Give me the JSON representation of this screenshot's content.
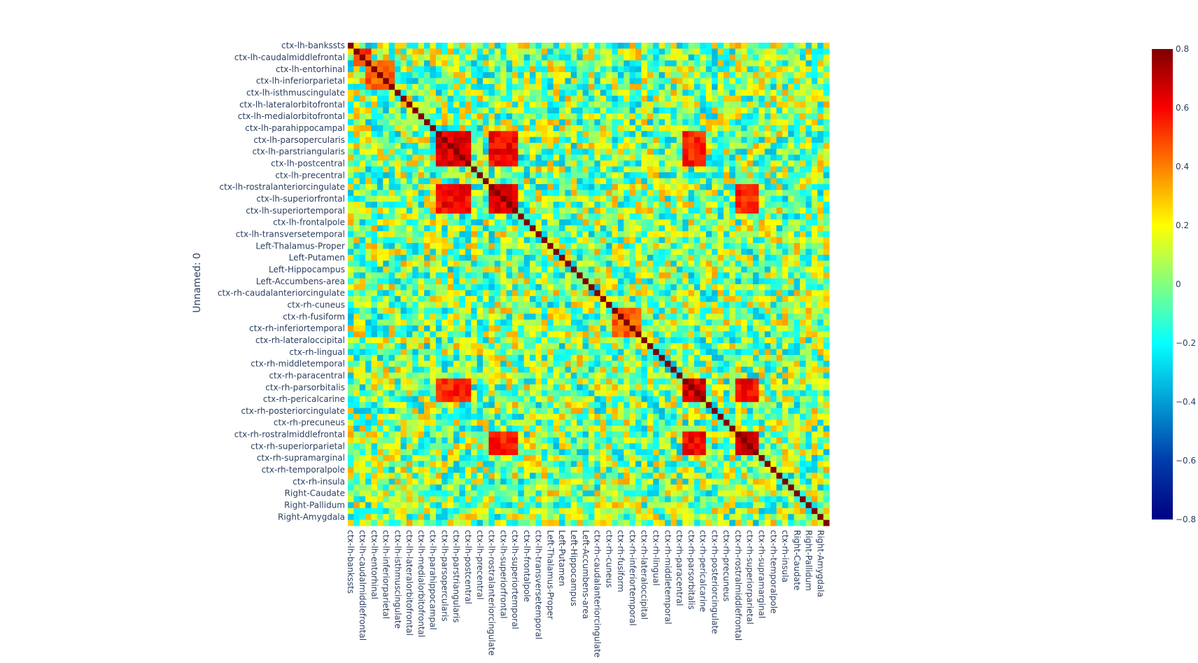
{
  "chart_data": {
    "type": "heatmap",
    "ylabel": "Unnamed: 0",
    "xlabel": "",
    "colorscale": "Jet",
    "zmin": -0.8,
    "zmax": 0.8,
    "colorbar_ticks": [
      "0.8",
      "0.6",
      "0.4",
      "0.2",
      "0",
      "−0.2",
      "−0.4",
      "−0.6",
      "−0.8"
    ],
    "colorbar_values": [
      0.8,
      0.6,
      0.4,
      0.2,
      0,
      -0.2,
      -0.4,
      -0.6,
      -0.8
    ],
    "colorscale_stops": [
      [
        0.0,
        "#000083"
      ],
      [
        0.125,
        "#003caa"
      ],
      [
        0.375,
        "#05ffff"
      ],
      [
        0.625,
        "#ffff00"
      ],
      [
        0.875,
        "#fa0000"
      ],
      [
        1.0,
        "#800000"
      ]
    ],
    "rows_total": 82,
    "tick_every": 2,
    "y_tick_labels": [
      "ctx-lh-bankssts",
      "ctx-lh-caudalmiddlefrontal",
      "ctx-lh-entorhinal",
      "ctx-lh-inferiorparietal",
      "ctx-lh-isthmuscingulate",
      "ctx-lh-lateralorbitofrontal",
      "ctx-lh-medialorbitofrontal",
      "ctx-lh-parahippocampal",
      "ctx-lh-parsopercularis",
      "ctx-lh-parstriangularis",
      "ctx-lh-postcentral",
      "ctx-lh-precentral",
      "ctx-lh-rostralanteriorcingulate",
      "ctx-lh-superiorfrontal",
      "ctx-lh-superiortemporal",
      "ctx-lh-frontalpole",
      "ctx-lh-transversetemporal",
      "Left-Thalamus-Proper",
      "Left-Putamen",
      "Left-Hippocampus",
      "Left-Accumbens-area",
      "ctx-rh-caudalanteriorcingulate",
      "ctx-rh-cuneus",
      "ctx-rh-fusiform",
      "ctx-rh-inferiortemporal",
      "ctx-rh-lateraloccipital",
      "ctx-rh-lingual",
      "ctx-rh-middletemporal",
      "ctx-rh-paracentral",
      "ctx-rh-parsorbitalis",
      "ctx-rh-pericalcarine",
      "ctx-rh-posteriorcingulate",
      "ctx-rh-precuneus",
      "ctx-rh-rostralmiddlefrontal",
      "ctx-rh-superiorparietal",
      "ctx-rh-supramarginal",
      "ctx-rh-temporalpole",
      "ctx-rh-insula",
      "Right-Caudate",
      "Right-Pallidum",
      "Right-Amygdala"
    ],
    "x_tick_labels": [
      "ctx-lh-bankssts",
      "ctx-lh-caudalmiddlefrontal",
      "ctx-lh-entorhinal",
      "ctx-lh-inferiorparietal",
      "ctx-lh-isthmuscingulate",
      "ctx-lh-lateralorbitofrontal",
      "ctx-lh-medialorbitofrontal",
      "ctx-lh-parahippocampal",
      "ctx-lh-parsopercularis",
      "ctx-lh-parstriangularis",
      "ctx-lh-postcentral",
      "ctx-lh-precentral",
      "ctx-lh-rostralanteriorcingulate",
      "ctx-lh-superiorfrontal",
      "ctx-lh-superiortemporal",
      "ctx-lh-frontalpole",
      "ctx-lh-transversetemporal",
      "Left-Thalamus-Proper",
      "Left-Putamen",
      "Left-Hippocampus",
      "Left-Accumbens-area",
      "ctx-rh-caudalanteriorcingulate",
      "ctx-rh-cuneus",
      "ctx-rh-fusiform",
      "ctx-rh-inferiortemporal",
      "ctx-rh-lateraloccipital",
      "ctx-rh-lingual",
      "ctx-rh-middletemporal",
      "ctx-rh-paracentral",
      "ctx-rh-parsorbitalis",
      "ctx-rh-pericalcarine",
      "ctx-rh-posteriorcingulate",
      "ctx-rh-precuneus",
      "ctx-rh-rostralmiddlefrontal",
      "ctx-rh-superiorparietal",
      "ctx-rh-supramarginal",
      "ctx-rh-temporalpole",
      "ctx-rh-insula",
      "Right-Caudate",
      "Right-Pallidum",
      "Right-Amygdala"
    ],
    "diagonal_value": 0.8,
    "approximate_blocks": [
      {
        "rows": [
          15,
          20
        ],
        "cols": [
          15,
          20
        ],
        "value": 0.65
      },
      {
        "rows": [
          24,
          28
        ],
        "cols": [
          24,
          28
        ],
        "value": 0.65
      },
      {
        "rows": [
          15,
          20
        ],
        "cols": [
          24,
          28
        ],
        "value": 0.6
      },
      {
        "rows": [
          24,
          28
        ],
        "cols": [
          15,
          20
        ],
        "value": 0.6
      },
      {
        "rows": [
          57,
          60
        ],
        "cols": [
          57,
          60
        ],
        "value": 0.65
      },
      {
        "rows": [
          66,
          69
        ],
        "cols": [
          66,
          69
        ],
        "value": 0.65
      },
      {
        "rows": [
          57,
          60
        ],
        "cols": [
          66,
          69
        ],
        "value": 0.6
      },
      {
        "rows": [
          66,
          69
        ],
        "cols": [
          57,
          60
        ],
        "value": 0.6
      },
      {
        "rows": [
          15,
          20
        ],
        "cols": [
          57,
          60
        ],
        "value": 0.55
      },
      {
        "rows": [
          57,
          60
        ],
        "cols": [
          15,
          20
        ],
        "value": 0.55
      },
      {
        "rows": [
          24,
          28
        ],
        "cols": [
          66,
          69
        ],
        "value": 0.55
      },
      {
        "rows": [
          66,
          69
        ],
        "cols": [
          24,
          28
        ],
        "value": 0.55
      },
      {
        "rows": [
          3,
          7
        ],
        "cols": [
          3,
          7
        ],
        "value": 0.45
      },
      {
        "rows": [
          1,
          3
        ],
        "cols": [
          1,
          3
        ],
        "value": 0.5
      },
      {
        "rows": [
          45,
          49
        ],
        "cols": [
          45,
          49
        ],
        "value": 0.45
      }
    ],
    "background_range": [
      -0.35,
      0.35
    ]
  }
}
